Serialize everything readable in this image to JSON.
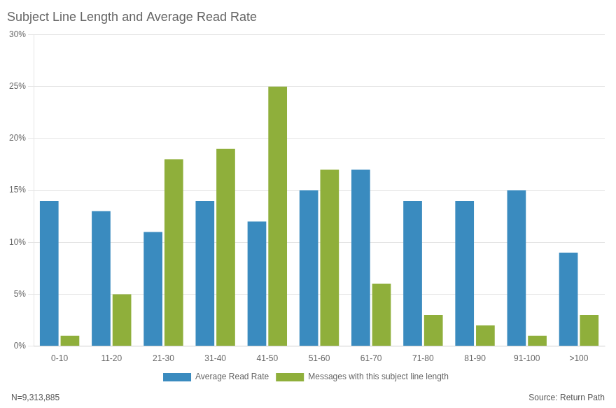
{
  "chart_data": {
    "type": "bar",
    "title": "Subject Line Length and Average Read Rate",
    "categories": [
      "0-10",
      "11-20",
      "21-30",
      "31-40",
      "41-50",
      "51-60",
      "61-70",
      "71-80",
      "81-90",
      "91-100",
      ">100"
    ],
    "series": [
      {
        "name": "Average Read Rate",
        "color": "#3a8bbf",
        "values": [
          14,
          13,
          11,
          14,
          12,
          15,
          17,
          14,
          14,
          15,
          9
        ]
      },
      {
        "name": "Messages with this subject line length",
        "color": "#8faf3b",
        "values": [
          1,
          5,
          18,
          19,
          25,
          17,
          6,
          3,
          2,
          1,
          3
        ]
      }
    ],
    "ylim": [
      0,
      30
    ],
    "yticks": [
      {
        "value": 0,
        "label": "0%"
      },
      {
        "value": 5,
        "label": "5%"
      },
      {
        "value": 10,
        "label": "10%"
      },
      {
        "value": 15,
        "label": "15%"
      },
      {
        "value": 20,
        "label": "20%"
      },
      {
        "value": 25,
        "label": "25%"
      },
      {
        "value": 30,
        "label": "30%"
      }
    ],
    "grid": true,
    "legend": "bottom",
    "annotations": [
      "N=9,313,885",
      "Source: Return Path"
    ]
  }
}
